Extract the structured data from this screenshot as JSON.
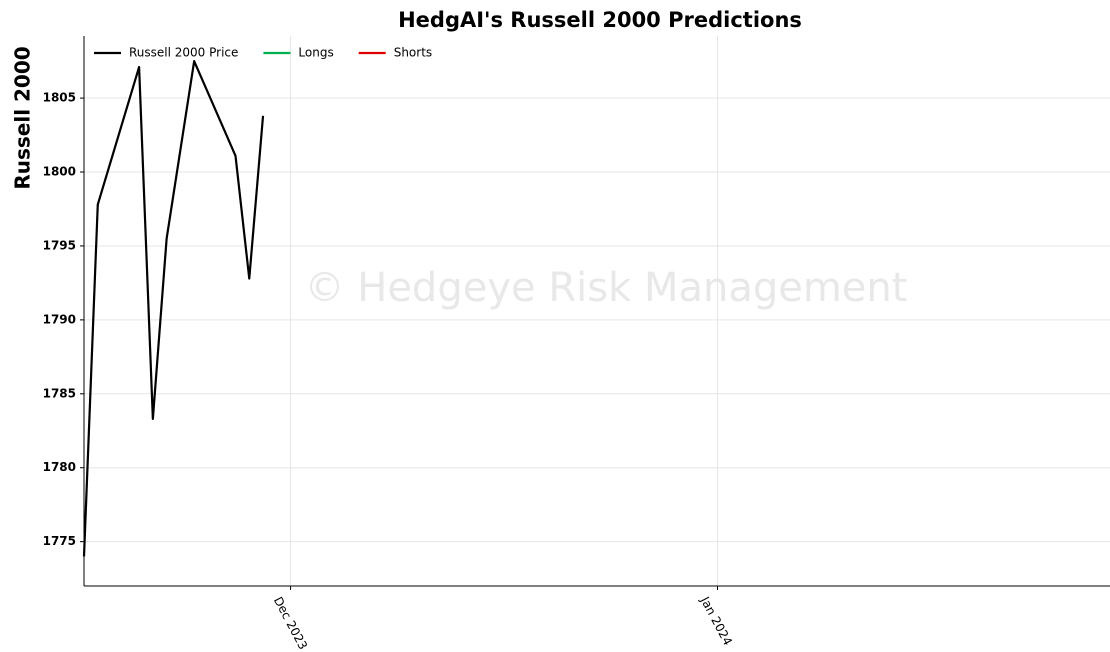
{
  "chart_data": {
    "type": "line",
    "title": "HedgAI's Russell 2000 Predictions",
    "y_label": "Russell 2000",
    "annotation": "© Hedgeye Risk Management",
    "x": [
      -15,
      -14,
      -11,
      -10,
      -9,
      -7,
      -4,
      -3,
      -2
    ],
    "series": [
      {
        "name": "Russell 2000 Price",
        "color": "#000000",
        "values": [
          1774,
          1797.8,
          1807.1,
          1783.3,
          1795.5,
          1807.5,
          1801.1,
          1792.8,
          1803.8
        ]
      },
      {
        "name": "Longs",
        "color": "#00b050",
        "values": [
          null,
          null,
          null,
          null,
          null,
          null,
          null,
          null,
          null
        ]
      },
      {
        "name": "Shorts",
        "color": "#e00000",
        "values": [
          null,
          null,
          null,
          null,
          null,
          null,
          null,
          null,
          null
        ]
      }
    ],
    "xlim": [
      -15,
      59.5
    ],
    "xticks": [
      {
        "value": 0,
        "label": "Dec 2023"
      },
      {
        "value": 31,
        "label": "Jan 2024"
      }
    ],
    "ylim": [
      1772,
      1809.2
    ],
    "yticks": [
      1775,
      1780,
      1785,
      1790,
      1795,
      1800,
      1805
    ],
    "grid": true,
    "legend": "upper left"
  }
}
